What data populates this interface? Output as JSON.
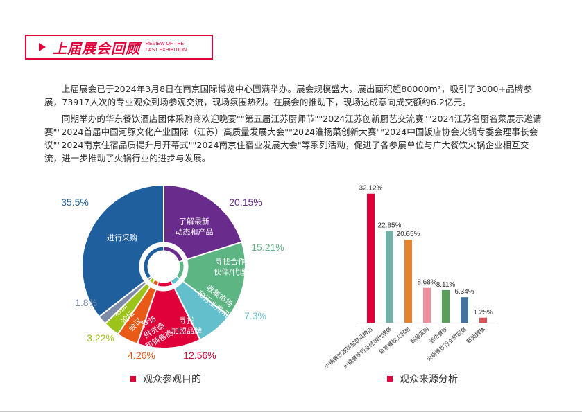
{
  "header": {
    "title_zh": "上届展会回顾",
    "title_en_line1": "REVIEW OF THE",
    "title_en_line2": "LAST EXHIBITION",
    "accent_color": "#e0003a",
    "icon": "play-triangle-icon"
  },
  "paragraphs": [
    "上届展会已于2024年3月8日在南京国际博览中心圆满举办。展会规模盛大，展出面积超80000m²，吸引了3000+品牌参展，73917人次的专业观众到场参观交流，现场氛围热烈。在展会的推动下，现场达成意向成交额约6.2亿元。",
    "同期举办的华东餐饮酒店团体采购商欢迎晚宴\"\"第五届江苏厨师节\"\"2024江苏创新厨艺交流赛\"\"2024江苏名厨名菜展示邀请赛\"\"2024首届中国河豚文化产业国际（江苏）高质量发展大会\"\"2024淮扬菜创新大赛\"\"2024中国饭店协会火锅专委会理事长会议\"\"2024南京住宿品质提升月开幕式\"\"2024南京住宿业发展大会\"等系列活动，促进了各参展单位与广大餐饮火锅企业相互交流，进一步推动了火锅行业的进步与发展。"
  ],
  "chart_data": [
    {
      "type": "pie",
      "title": "观众参观目的",
      "categories": [
        "进行采购",
        "了解最新动态和产品",
        "寻找合作伙伴/代理",
        "收集市场和行业资讯",
        "寻找加盟品牌",
        "拜访供货商和销售商",
        "参加论坛会议",
        "其他"
      ],
      "values": [
        35.5,
        20.15,
        15.21,
        7.3,
        12.56,
        4.26,
        3.22,
        1.8
      ],
      "value_labels": [
        "35.5%",
        "20.15%",
        "15.21%",
        "7.3%",
        "12.56%",
        "4.26%",
        "3.22%",
        "1.8%"
      ],
      "colors": [
        "#1f5f9e",
        "#6a2c8c",
        "#5db583",
        "#64bfcc",
        "#e0003a",
        "#e85a16",
        "#9cc31a",
        "#7d8aa8"
      ],
      "slice_labels": [
        [
          "进行采购"
        ],
        [
          "了解最新",
          "动态和产品"
        ],
        [
          "寻找合作",
          "伙伴/代理"
        ],
        [
          "收集市场",
          "和行业资讯"
        ],
        [
          "寻找",
          "加盟品牌"
        ],
        [
          "拜访",
          "供货商",
          "和销售商"
        ],
        [
          "参加",
          "论坛",
          "会议"
        ],
        [
          "其他"
        ]
      ],
      "style": "donut",
      "legend_position": "bottom"
    },
    {
      "type": "bar",
      "title": "观众来源分析",
      "categories": [
        "火锅餐饮连锁加盟品牌店",
        "火锅餐饮行业经销代理商",
        "自营餐饮火锅店",
        "商超采购",
        "酒店餐饮",
        "火锅餐饮行业供应商",
        "新闻媒体"
      ],
      "values": [
        32.12,
        22.85,
        20.65,
        8.68,
        8.11,
        6.34,
        1.25
      ],
      "value_labels": [
        "32.12%",
        "22.85%",
        "20.65%",
        "8.68%",
        "8.11%",
        "6.34%",
        "1.25%"
      ],
      "colors": [
        "#e0003a",
        "#74b0a8",
        "#e28431",
        "#ec8e9c",
        "#58a05a",
        "#44739f",
        "#d9515b"
      ],
      "xlabel": "",
      "ylabel": "",
      "ylim": [
        0,
        35
      ],
      "grid": false,
      "legend_position": "bottom"
    }
  ]
}
